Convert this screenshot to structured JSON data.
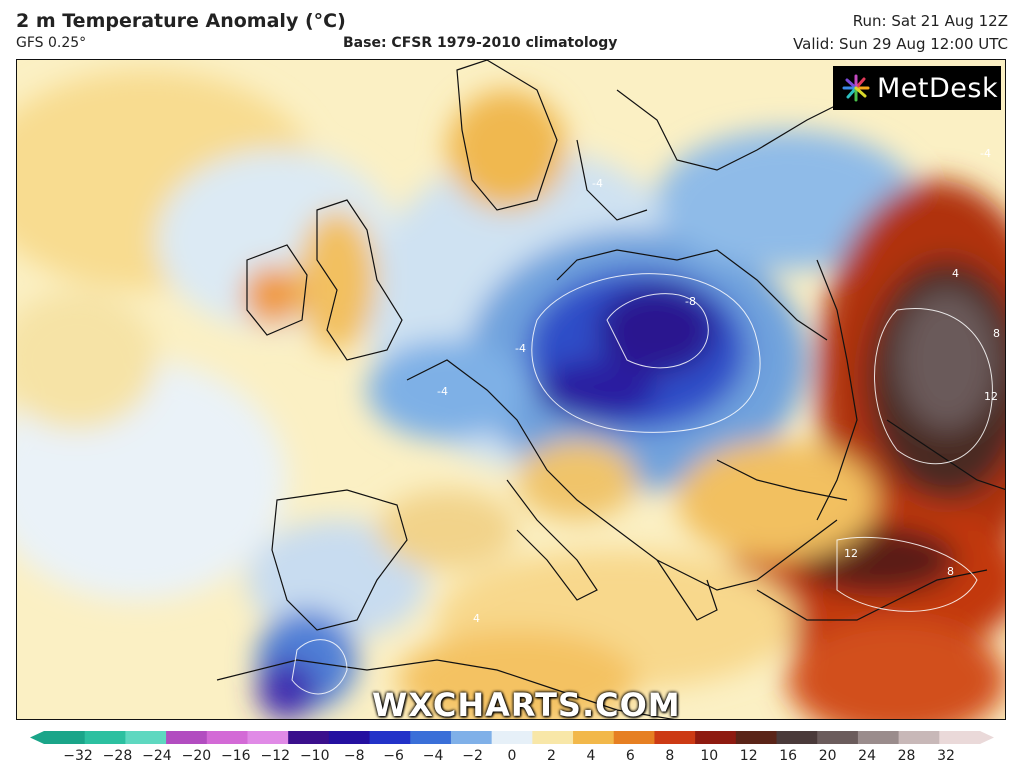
{
  "header": {
    "title": "2 m Temperature Anomaly (°C)",
    "model": "GFS 0.25°",
    "base": "Base: CFSR 1979-2010 climatology",
    "run": "Run: Sat 21 Aug 12Z",
    "valid": "Valid: Sun 29 Aug 12:00 UTC"
  },
  "logo": {
    "text": "MetDesk",
    "icon": "metdesk-burst-icon"
  },
  "watermark": "WXCHARTS.COM",
  "contour_labels": [
    "-8",
    "-4",
    "-4",
    "-4",
    "4",
    "8",
    "12",
    "12",
    "8",
    "-4",
    "4"
  ],
  "colorbar": {
    "ticks": [
      "−32",
      "−28",
      "−24",
      "−20",
      "−16",
      "−12",
      "−10",
      "−8",
      "−6",
      "−4",
      "−2",
      "0",
      "2",
      "4",
      "6",
      "8",
      "10",
      "12",
      "16",
      "20",
      "24",
      "28",
      "32"
    ],
    "colors": [
      "#1aa589",
      "#2cc0a0",
      "#5ed8c0",
      "#b24dc0",
      "#d36ad6",
      "#e08ae6",
      "#3a0f8c",
      "#2410a0",
      "#2232c8",
      "#3a6fd8",
      "#7fb0e8",
      "#e6f0f8",
      "#f8e7a8",
      "#f2b84a",
      "#e67f22",
      "#cc3a14",
      "#8e1a10",
      "#5a2418",
      "#4a3a3a",
      "#6b5c5c",
      "#9a8c8c",
      "#c8b8b8",
      "#ead9d9"
    ]
  }
}
